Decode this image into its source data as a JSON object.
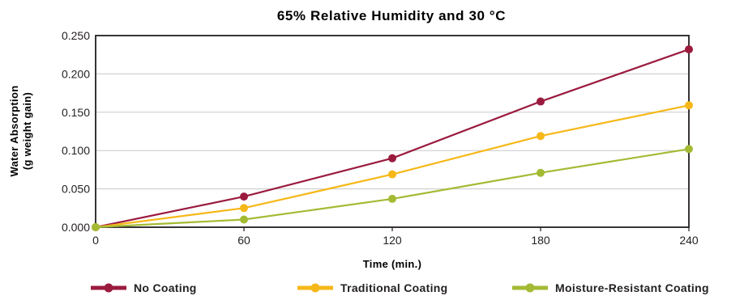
{
  "chart_data": {
    "type": "line",
    "title": "65% Relative Humidity and 30 °C",
    "xlabel": "Time (min.)",
    "ylabel": [
      "Water Absorption",
      "(g weight gain)"
    ],
    "x": [
      0,
      60,
      120,
      180,
      240
    ],
    "xlim": [
      0,
      240
    ],
    "ylim": [
      0,
      0.25
    ],
    "xticks": [
      "0",
      "60",
      "120",
      "180",
      "240"
    ],
    "yticks": [
      "0.000",
      "0.050",
      "0.100",
      "0.150",
      "0.200",
      "0.250"
    ],
    "ytick_values": [
      0,
      0.05,
      0.1,
      0.15,
      0.2,
      0.25
    ],
    "grid": true,
    "legend_position": "bottom",
    "series": [
      {
        "name": "No Coating",
        "color": "#9b1b3f",
        "values": [
          0.0,
          0.04,
          0.09,
          0.164,
          0.232
        ]
      },
      {
        "name": "Traditional Coating",
        "color": "#f6b818",
        "values": [
          0.0,
          0.025,
          0.069,
          0.119,
          0.159
        ]
      },
      {
        "name": "Moisture-Resistant Coating",
        "color": "#a3bb34",
        "values": [
          0.0,
          0.01,
          0.037,
          0.071,
          0.102
        ]
      }
    ]
  }
}
